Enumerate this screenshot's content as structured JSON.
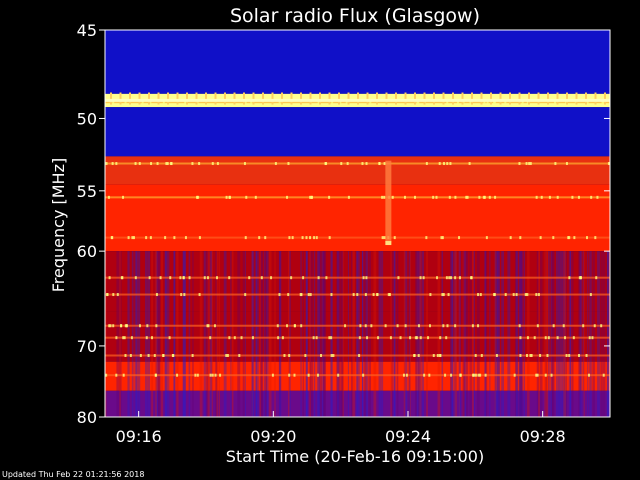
{
  "chart_data": {
    "type": "heatmap",
    "title": "Solar radio Flux (Glasgow)",
    "ylabel": "Frequency [MHz]",
    "xlabel": "Start Time (20-Feb-16 09:15:00)",
    "x_ticks": [
      "09:16",
      "09:20",
      "09:24",
      "09:28"
    ],
    "y_ticks": [
      "45",
      "50",
      "55",
      "60",
      "70",
      "80"
    ],
    "xlim": [
      "09:15:00",
      "09:30:00"
    ],
    "ylim": [
      45,
      80
    ],
    "bands": [
      {
        "from": 45,
        "to": 48.5,
        "level": "low"
      },
      {
        "from": 48.5,
        "to": 49.3,
        "level": "very high"
      },
      {
        "from": 49.3,
        "to": 52.5,
        "level": "low"
      },
      {
        "from": 52.5,
        "to": 54.5,
        "level": "medium-high"
      },
      {
        "from": 54.5,
        "to": 60,
        "level": "high"
      },
      {
        "from": 60,
        "to": 66,
        "level": "medium"
      },
      {
        "from": 66,
        "to": 72,
        "level": "medium"
      },
      {
        "from": 72,
        "to": 76,
        "level": "high"
      },
      {
        "from": 76,
        "to": 80,
        "level": "medium-low"
      }
    ],
    "colors": {
      "low": "#0000c8",
      "medium": "#b00000",
      "high": "#ff2000",
      "very high": "#ffff80"
    }
  },
  "footer": "Updated Thu Feb 22 01:21:56 2018"
}
